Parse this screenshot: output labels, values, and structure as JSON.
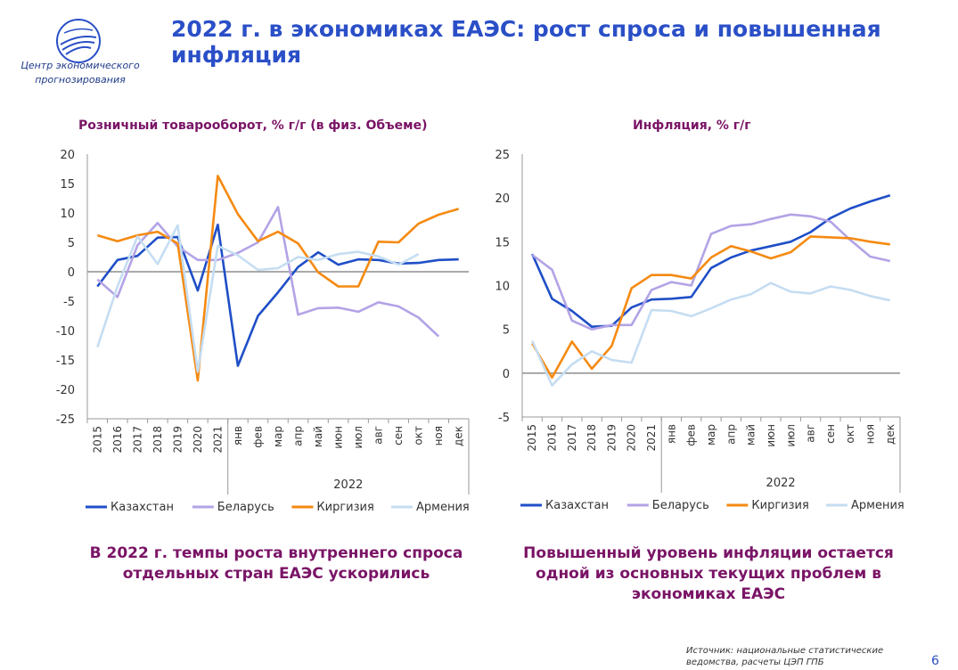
{
  "header": {
    "logo_text": "Центр экономического прогнозирования",
    "title": "2022 г. в экономиках ЕАЭС: рост спроса и повышенная инфляция"
  },
  "captions": {
    "left": "В 2022 г. темпы роста внутреннего спроса отдельных стран ЕАЭС ускорились",
    "right": "Повышенный уровень инфляции остается одной из основных текущих проблем в экономиках ЕАЭС"
  },
  "footer": {
    "source": "Источник: национальные статистические ведомства, расчеты ЦЭП ГПБ",
    "page": "6"
  },
  "colors": {
    "Казахстан": "#1f4fc7",
    "Беларусь": "#b3a3e6",
    "Киргизия": "#f58a12",
    "Армения": "#c5ddf2"
  },
  "chart_data": [
    {
      "type": "line",
      "title": "Розничный товарооборот, % г/г (в физ. Объеме)",
      "categories": [
        "2015",
        "2016",
        "2017",
        "2018",
        "2019",
        "2020",
        "2021",
        "янв",
        "фев",
        "мар",
        "апр",
        "май",
        "июн",
        "июл",
        "авг",
        "сен",
        "окт",
        "ноя",
        "дек"
      ],
      "group_label": "2022",
      "ylim": [
        -25,
        20
      ],
      "yticks": [
        20,
        15,
        10,
        5,
        0,
        -5,
        -10,
        -15,
        -20,
        -25
      ],
      "series": [
        {
          "name": "Казахстан",
          "values": [
            -2.5,
            2.0,
            2.7,
            5.8,
            5.9,
            -3.2,
            8.0,
            -16.0,
            -7.5,
            -3.5,
            0.8,
            3.3,
            1.2,
            2.1,
            2.0,
            1.4,
            1.5,
            2.0,
            2.1
          ]
        },
        {
          "name": "Беларусь",
          "values": [
            -1.3,
            -4.3,
            4.5,
            8.3,
            4.3,
            2.0,
            2.0,
            3.2,
            5.0,
            11.0,
            -7.3,
            -6.2,
            -6.1,
            -6.8,
            -5.2,
            -5.9,
            -7.8,
            -11.0,
            null
          ]
        },
        {
          "name": "Киргизия",
          "values": [
            6.2,
            5.2,
            6.2,
            6.8,
            4.8,
            -18.5,
            16.3,
            9.8,
            5.2,
            6.8,
            4.8,
            -0.1,
            -2.5,
            -2.5,
            5.1,
            5.0,
            8.2,
            9.7,
            10.7
          ]
        },
        {
          "name": "Армения",
          "values": [
            -12.8,
            -2.5,
            6.0,
            1.3,
            7.9,
            -17.0,
            4.4,
            2.8,
            0.3,
            0.6,
            2.5,
            2.0,
            3.0,
            3.4,
            2.6,
            1.2,
            3.0,
            null,
            null
          ]
        }
      ],
      "legend": "bottom"
    },
    {
      "type": "line",
      "title": "Инфляция, % г/г",
      "categories": [
        "2015",
        "2016",
        "2017",
        "2018",
        "2019",
        "2020",
        "2021",
        "янв",
        "фев",
        "мар",
        "апр",
        "май",
        "июн",
        "июл",
        "авг",
        "сен",
        "окт",
        "ноя",
        "дек"
      ],
      "group_label": "2022",
      "ylim": [
        -5,
        25
      ],
      "yticks": [
        25,
        20,
        15,
        10,
        5,
        0,
        -5
      ],
      "series": [
        {
          "name": "Казахстан",
          "values": [
            13.6,
            8.5,
            7.1,
            5.3,
            5.4,
            7.5,
            8.4,
            8.5,
            8.7,
            12.0,
            13.2,
            14.0,
            14.5,
            15.0,
            16.1,
            17.7,
            18.8,
            19.6,
            20.3
          ]
        },
        {
          "name": "Беларусь",
          "values": [
            13.5,
            11.8,
            6.0,
            5.0,
            5.5,
            5.5,
            9.5,
            10.4,
            10.0,
            15.9,
            16.8,
            17.0,
            17.6,
            18.1,
            17.9,
            17.3,
            15.2,
            13.3,
            12.8
          ]
        },
        {
          "name": "Киргизия",
          "values": [
            3.4,
            -0.5,
            3.6,
            0.5,
            3.1,
            9.7,
            11.2,
            11.2,
            10.8,
            13.2,
            14.5,
            13.9,
            13.1,
            13.8,
            15.6,
            15.5,
            15.4,
            15.0,
            14.7
          ]
        },
        {
          "name": "Армения",
          "values": [
            3.7,
            -1.4,
            1.0,
            2.5,
            1.5,
            1.2,
            7.2,
            7.1,
            6.5,
            7.4,
            8.4,
            9.0,
            10.3,
            9.3,
            9.1,
            9.9,
            9.5,
            8.8,
            8.3
          ]
        }
      ],
      "legend": "bottom"
    }
  ]
}
